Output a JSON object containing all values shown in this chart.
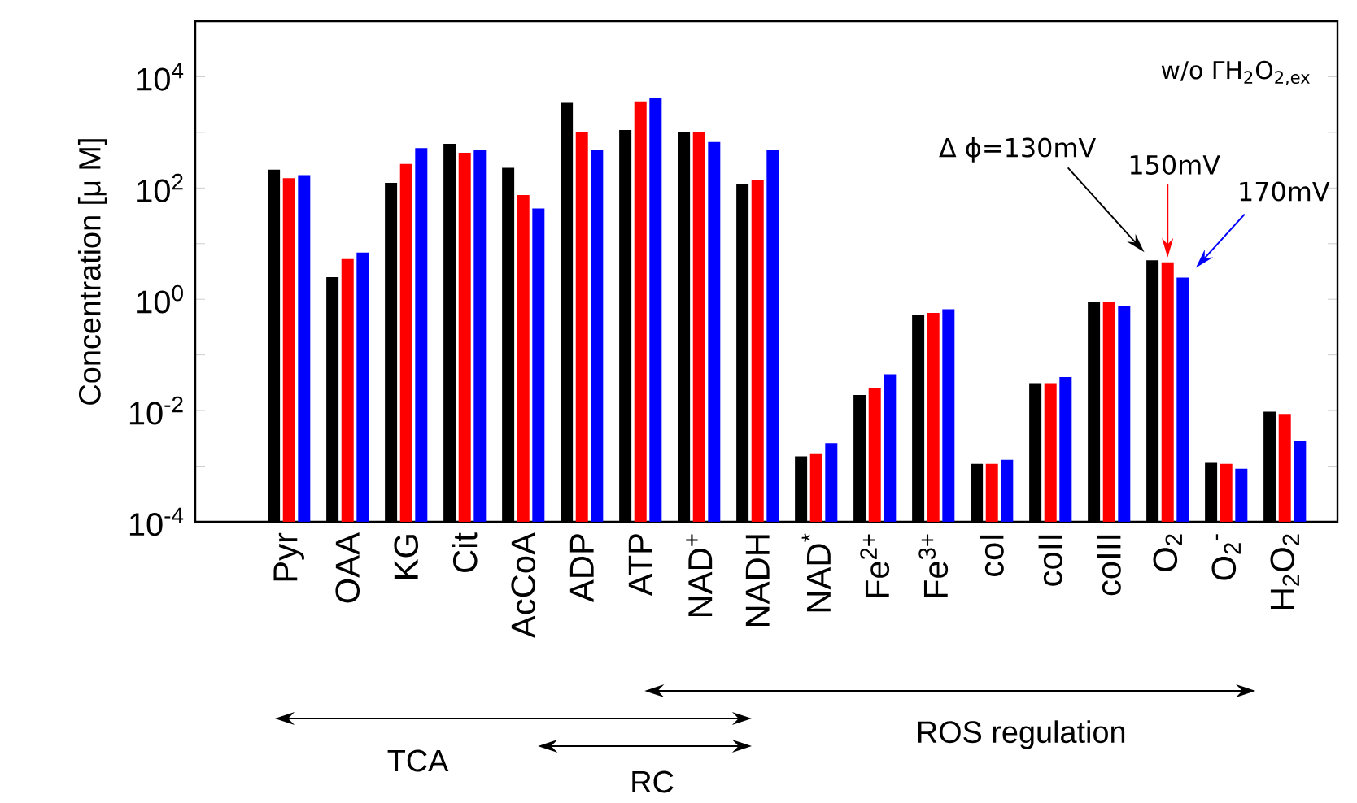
{
  "chart_data": {
    "type": "bar",
    "log": true,
    "grid": false,
    "ylabel": "Concentration [μ M]",
    "categories": [
      "Pyr",
      "OAA",
      "KG",
      "Cit",
      "AcCoA",
      "ADP",
      "ATP",
      "NAD$^{+}$",
      "NADH",
      "NAD$^{*}$",
      "Fe$^{2+}$",
      "Fe$^{3+}$",
      "coI",
      "coII",
      "coIII",
      "O$_{2}$",
      "O$_{2}$$^{-}$",
      "H$_{2}$O$_{2}$"
    ],
    "series": [
      {
        "color": "#000000",
        "values": [
          213,
          2.5,
          124,
          620,
          230,
          3400,
          1100,
          1000,
          118,
          0.0015,
          0.019,
          0.52,
          0.0011,
          0.031,
          0.91,
          5.0,
          0.00115,
          0.0095
        ]
      },
      {
        "color": "#ff0000",
        "values": [
          150,
          5.3,
          270,
          430,
          75,
          1000,
          3600,
          1000,
          138,
          0.0017,
          0.025,
          0.57,
          0.0011,
          0.031,
          0.88,
          4.6,
          0.0011,
          0.0087
        ]
      },
      {
        "color": "#0000ff",
        "values": [
          170,
          6.9,
          520,
          490,
          43,
          490,
          4100,
          670,
          490,
          0.0026,
          0.045,
          0.66,
          0.0013,
          0.04,
          0.75,
          2.45,
          0.0009,
          0.0029
        ]
      }
    ],
    "ylim": [
      0.0001,
      100000
    ],
    "yticks": [
      {
        "value": 0.0001,
        "label": "10$^{-4}$"
      },
      {
        "value": 0.001,
        "label": null
      },
      {
        "value": 0.01,
        "label": "10$^{-2}$"
      },
      {
        "value": 0.1,
        "label": null
      },
      {
        "value": 1,
        "label": "10$^{0}$"
      },
      {
        "value": 10,
        "label": null
      },
      {
        "value": 100,
        "label": "10$^{2}$"
      },
      {
        "value": 1000,
        "label": null
      },
      {
        "value": 10000,
        "label": "10$^{4}$"
      }
    ],
    "annotations": [
      "w/o ΓH$_{2}$O$_{2,ex}$",
      "TCA",
      "RC",
      "ROS regulation",
      "Δ ϕ=130mV",
      "150mV",
      "170mV"
    ]
  }
}
